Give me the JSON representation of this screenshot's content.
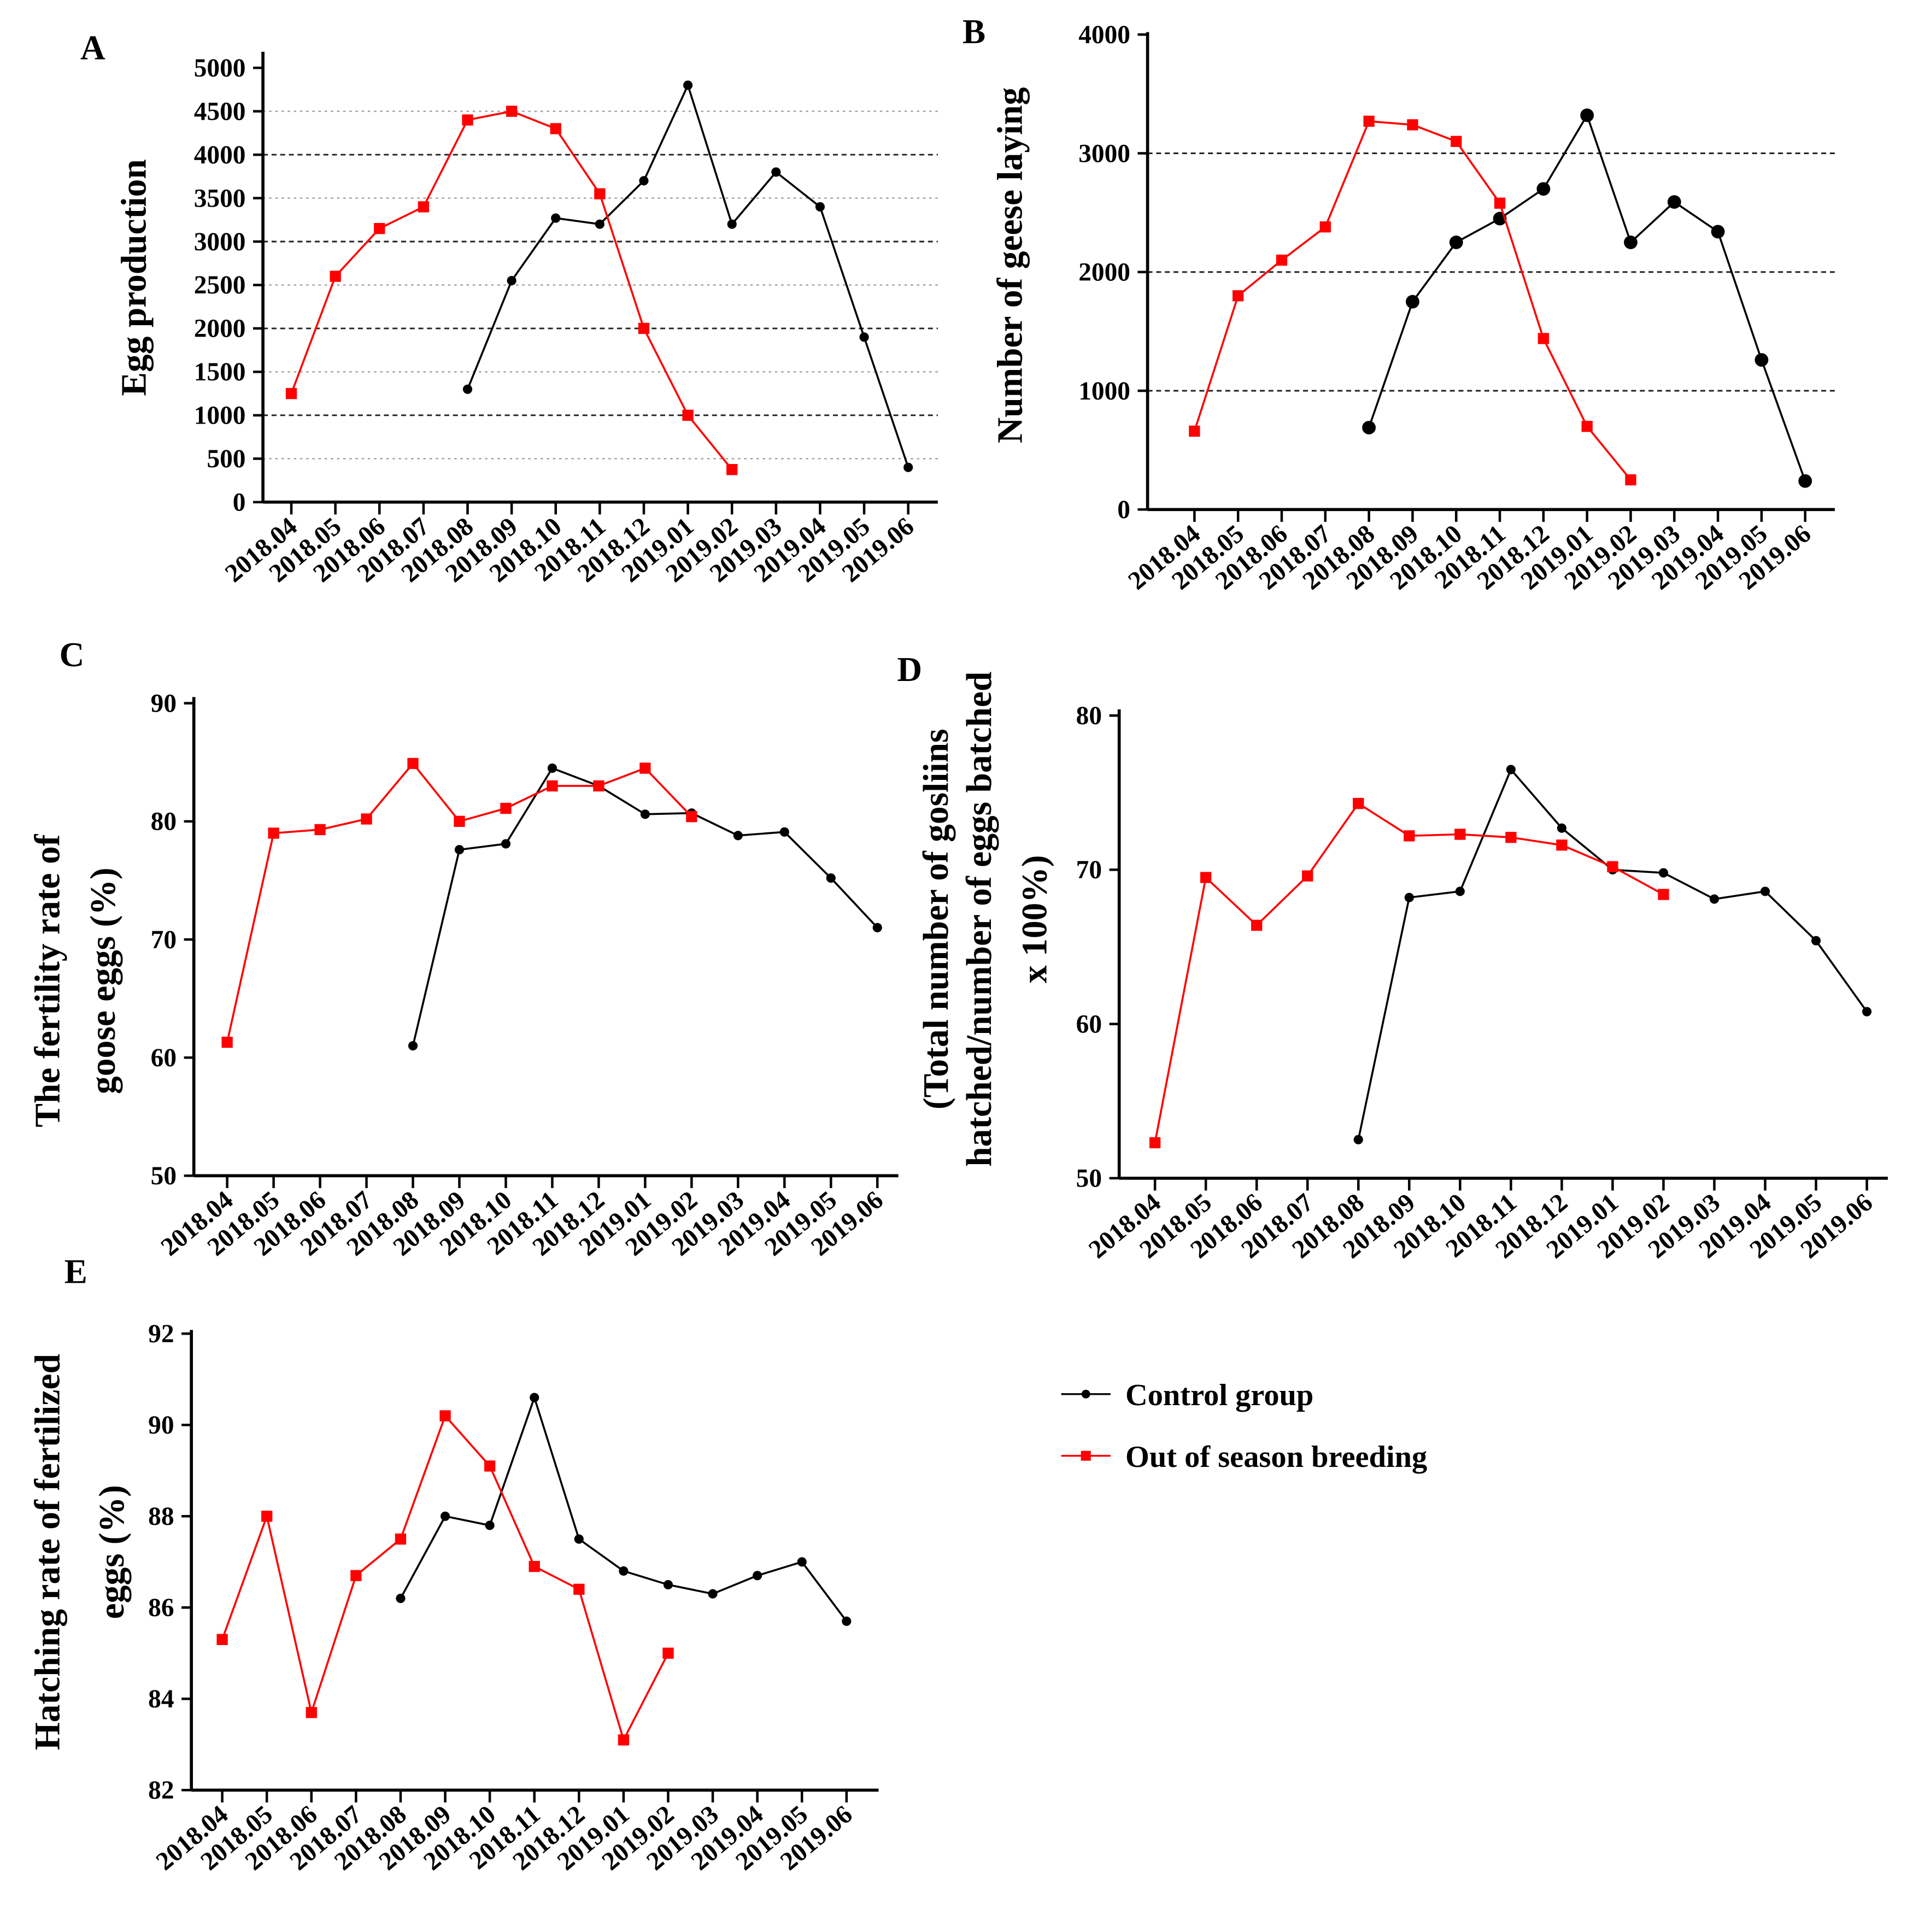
{
  "legend": {
    "control": "Control group",
    "oos": "Out of season breeding"
  },
  "colors": {
    "control": "#000000",
    "oos": "#ff0000"
  },
  "chart_data": [
    {
      "type": "line",
      "panel": "A",
      "ylabel": [
        "Egg production"
      ],
      "ylim": [
        0,
        5000
      ],
      "yticks": [
        0,
        500,
        1000,
        1500,
        2000,
        2500,
        3000,
        3500,
        4000,
        4500,
        5000
      ],
      "hlines": [
        500,
        1000,
        1500,
        2000,
        2500,
        3000,
        3500,
        4000,
        4500
      ],
      "categories": [
        "2018.04",
        "2018.05",
        "2018.06",
        "2018.07",
        "2018.08",
        "2018.09",
        "2018.10",
        "2018.11",
        "2018.12",
        "2019.01",
        "2019.02",
        "2019.03",
        "2019.04",
        "2019.05",
        "2019.06"
      ],
      "series": [
        {
          "name": "Control group",
          "values": [
            null,
            null,
            null,
            null,
            1300,
            2550,
            3270,
            3200,
            3700,
            4800,
            3200,
            3800,
            3400,
            1900,
            400
          ]
        },
        {
          "name": "Out of season breeding",
          "values": [
            1250,
            2600,
            3150,
            3400,
            4400,
            4500,
            4300,
            3550,
            2000,
            1000,
            375,
            null,
            null,
            null,
            null
          ]
        }
      ]
    },
    {
      "type": "line",
      "panel": "B",
      "ylabel": [
        "Number of geese laying"
      ],
      "ylim": [
        0,
        4000
      ],
      "yticks": [
        0,
        1000,
        2000,
        3000,
        4000
      ],
      "hlines": [
        1000,
        2000,
        3000
      ],
      "categories": [
        "2018.04",
        "2018.05",
        "2018.06",
        "2018.07",
        "2018.08",
        "2018.09",
        "2018.10",
        "2018.11",
        "2018.12",
        "2019.01",
        "2019.02",
        "2019.03",
        "2019.04",
        "2019.05",
        "2019.06"
      ],
      "series": [
        {
          "name": "Control group",
          "values": [
            null,
            null,
            null,
            null,
            690,
            1750,
            2250,
            2450,
            2700,
            3320,
            2250,
            2590,
            2340,
            1260,
            240
          ]
        },
        {
          "name": "Out of season breeding",
          "values": [
            660,
            1800,
            2100,
            2380,
            3270,
            3240,
            3100,
            2580,
            1440,
            700,
            250,
            null,
            null,
            null,
            null
          ]
        }
      ]
    },
    {
      "type": "line",
      "panel": "C",
      "ylabel": [
        "The fertility rate of",
        "goose eggs (%)"
      ],
      "ylim": [
        50,
        90
      ],
      "yticks": [
        50,
        60,
        70,
        80,
        90
      ],
      "hlines": [],
      "categories": [
        "2018.04",
        "2018.05",
        "2018.06",
        "2018.07",
        "2018.08",
        "2018.09",
        "2018.10",
        "2018.11",
        "2018.12",
        "2019.01",
        "2019.02",
        "2019.03",
        "2019.04",
        "2019.05",
        "2019.06"
      ],
      "series": [
        {
          "name": "Control group",
          "values": [
            null,
            null,
            null,
            null,
            61.0,
            77.6,
            78.1,
            84.5,
            83.0,
            80.6,
            80.7,
            78.8,
            79.1,
            75.2,
            71.0
          ]
        },
        {
          "name": "Out of season breeding",
          "values": [
            61.3,
            79.0,
            79.3,
            80.2,
            84.9,
            80.0,
            81.1,
            83.0,
            83.0,
            84.5,
            80.4,
            null,
            null,
            null,
            null
          ]
        }
      ]
    },
    {
      "type": "line",
      "panel": "D",
      "ylabel": [
        "(Total number of gosliins",
        "hatched/number of eggs batched",
        "x 100%)"
      ],
      "ylim": [
        50,
        80
      ],
      "yticks": [
        50,
        60,
        70,
        80
      ],
      "hlines": [],
      "categories": [
        "2018.04",
        "2018.05",
        "2018.06",
        "2018.07",
        "2018.08",
        "2018.09",
        "2018.10",
        "2018.11",
        "2018.12",
        "2019.01",
        "2019.02",
        "2019.03",
        "2019.04",
        "2019.05",
        "2019.06"
      ],
      "series": [
        {
          "name": "Control group",
          "values": [
            null,
            null,
            null,
            null,
            52.5,
            68.2,
            68.6,
            76.5,
            72.7,
            70.0,
            69.8,
            68.1,
            68.6,
            65.4,
            60.8
          ]
        },
        {
          "name": "Out of season breeding",
          "values": [
            52.3,
            69.5,
            66.4,
            69.6,
            74.3,
            72.2,
            72.3,
            72.1,
            71.6,
            70.2,
            68.4,
            null,
            null,
            null,
            null
          ]
        }
      ]
    },
    {
      "type": "line",
      "panel": "E",
      "ylabel": [
        "Hatching rate of fertilized",
        "eggs (%)"
      ],
      "ylim": [
        82,
        92
      ],
      "yticks": [
        82,
        84,
        86,
        88,
        90,
        92
      ],
      "hlines": [],
      "categories": [
        "2018.04",
        "2018.05",
        "2018.06",
        "2018.07",
        "2018.08",
        "2018.09",
        "2018.10",
        "2018.11",
        "2018.12",
        "2019.01",
        "2019.02",
        "2019.03",
        "2019.04",
        "2019.05",
        "2019.06"
      ],
      "series": [
        {
          "name": "Control group",
          "values": [
            null,
            null,
            null,
            null,
            86.2,
            88.0,
            87.8,
            90.6,
            87.5,
            86.8,
            86.5,
            86.3,
            86.7,
            87.0,
            85.7
          ]
        },
        {
          "name": "Out of season breeding",
          "values": [
            85.3,
            88.0,
            83.7,
            86.7,
            87.5,
            90.2,
            89.1,
            86.9,
            86.4,
            83.1,
            85.0,
            null,
            null,
            null,
            null
          ]
        }
      ]
    }
  ]
}
